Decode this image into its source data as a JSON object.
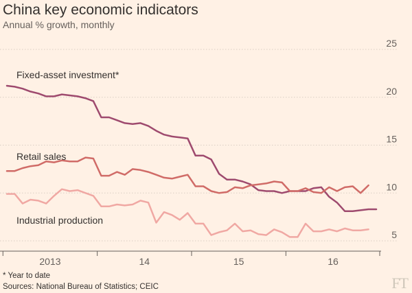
{
  "header": {
    "title": "China key economic indicators",
    "subtitle": "Annual % growth, monthly"
  },
  "footer": {
    "footnote": "* Year to date",
    "source": "Sources: National Bureau of Statistics; CEIC",
    "logo": "FT"
  },
  "colors": {
    "background": "#fff1e5",
    "grid": "#d9cdc3",
    "fixed_asset": "#9e4a6e",
    "retail": "#d06b67",
    "industrial": "#f0a8a3"
  },
  "chart_data": {
    "type": "line",
    "title": "China key economic indicators",
    "subtitle": "Annual % growth, monthly",
    "ylim": [
      5,
      25
    ],
    "yticks": [
      5,
      10,
      15,
      20,
      25
    ],
    "x_tick_labels": [
      {
        "label": "2013",
        "year": 2013
      },
      {
        "label": "14",
        "year": 2014
      },
      {
        "label": "15",
        "year": 2015
      },
      {
        "label": "16",
        "year": 2016
      }
    ],
    "x_start": "2013-01",
    "grid": true,
    "series": [
      {
        "name": "Fixed-asset investment*",
        "color": "#9e4a6e",
        "values": [
          21.2,
          21.1,
          20.9,
          20.6,
          20.4,
          20.1,
          20.1,
          20.3,
          20.2,
          20.1,
          19.9,
          19.6,
          17.9,
          17.9,
          17.6,
          17.3,
          17.2,
          17.3,
          17.0,
          16.5,
          16.1,
          15.9,
          15.8,
          15.7,
          13.9,
          13.9,
          13.5,
          12.0,
          11.4,
          11.4,
          11.2,
          10.9,
          10.3,
          10.2,
          10.2,
          10.0,
          10.2,
          10.2,
          10.2,
          10.5,
          10.6,
          9.6,
          9.0,
          8.1,
          8.1,
          8.2,
          8.3,
          8.3
        ]
      },
      {
        "name": "Retail sales",
        "color": "#d06b67",
        "values": [
          12.3,
          12.3,
          12.6,
          12.8,
          12.9,
          13.3,
          13.2,
          13.4,
          13.3,
          13.3,
          13.7,
          13.6,
          11.8,
          11.8,
          12.2,
          11.9,
          12.5,
          12.4,
          12.2,
          11.9,
          11.6,
          11.5,
          11.7,
          11.9,
          10.7,
          10.7,
          10.2,
          10.0,
          10.1,
          10.6,
          10.5,
          10.8,
          10.9,
          11.0,
          11.2,
          11.1,
          10.2,
          10.2,
          10.5,
          10.1,
          10.0,
          10.6,
          10.2,
          10.6,
          10.7,
          10.0,
          10.8
        ]
      },
      {
        "name": "Industrial production",
        "color": "#f0a8a3",
        "values": [
          9.9,
          9.9,
          8.9,
          9.3,
          9.2,
          8.9,
          9.7,
          10.4,
          10.2,
          10.3,
          10.0,
          9.7,
          8.6,
          8.6,
          8.8,
          8.7,
          8.8,
          9.2,
          9.0,
          6.9,
          8.0,
          7.7,
          7.2,
          7.9,
          6.8,
          6.8,
          5.6,
          5.9,
          6.1,
          6.8,
          6.0,
          6.1,
          5.7,
          5.6,
          6.2,
          5.9,
          5.4,
          5.4,
          6.8,
          6.0,
          6.0,
          6.2,
          6.0,
          6.3,
          6.1,
          6.1,
          6.2
        ]
      }
    ]
  }
}
